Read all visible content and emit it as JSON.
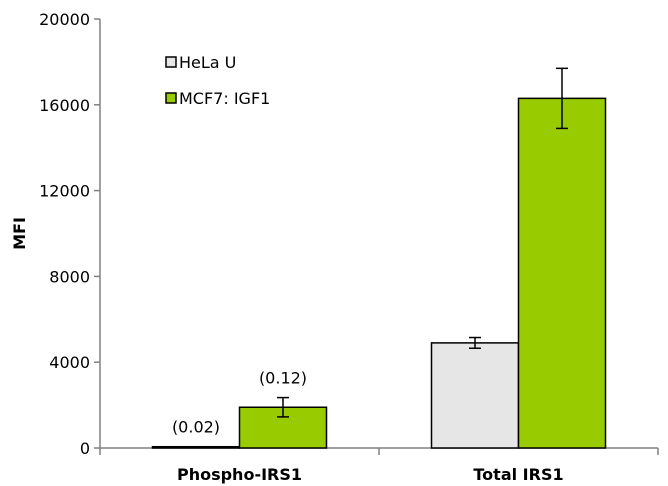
{
  "chart_data": {
    "type": "bar",
    "ylabel": "MFI",
    "xlabel": "",
    "ylim": [
      0,
      20000
    ],
    "yticks": [
      0,
      4000,
      8000,
      12000,
      16000,
      20000
    ],
    "grid": false,
    "legend_position": "top-left",
    "categories": [
      "Phospho-IRS1",
      "Total IRS1"
    ],
    "series": [
      {
        "name": "HeLa U",
        "values": [
          60,
          4900
        ],
        "errors": [
          0,
          250
        ],
        "color": "#e6e6e6"
      },
      {
        "name": "MCF7: IGF1",
        "values": [
          1900,
          16300
        ],
        "errors": [
          450,
          1400
        ],
        "color": "#99cc00"
      }
    ],
    "annotations": [
      {
        "category": 0,
        "series": 0,
        "text": "(0.02)"
      },
      {
        "category": 0,
        "series": 1,
        "text": "(0.12)"
      }
    ]
  }
}
